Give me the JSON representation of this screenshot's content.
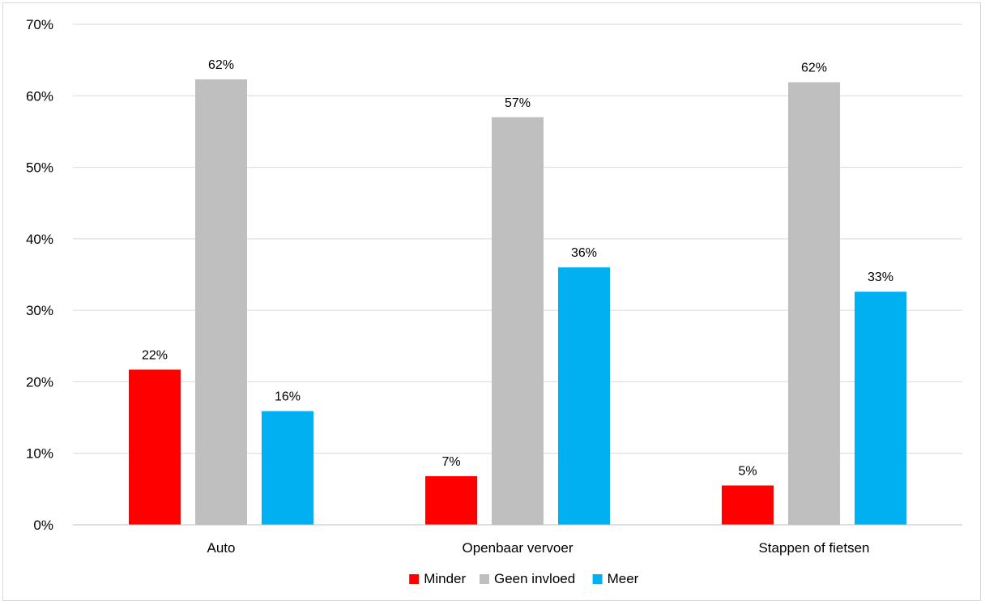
{
  "chart_data": {
    "type": "bar",
    "categories": [
      "Auto",
      "Openbaar vervoer",
      "Stappen of fietsen"
    ],
    "series": [
      {
        "name": "Minder",
        "color": "#ff0000",
        "values": [
          0.217,
          0.068,
          0.055
        ],
        "labels": [
          "22%",
          "7%",
          "5%"
        ]
      },
      {
        "name": "Geen invloed",
        "color": "#bfbfbf",
        "values": [
          0.623,
          0.57,
          0.619
        ],
        "labels": [
          "62%",
          "57%",
          "62%"
        ]
      },
      {
        "name": "Meer",
        "color": "#00b0f0",
        "values": [
          0.159,
          0.36,
          0.326
        ],
        "labels": [
          "16%",
          "36%",
          "33%"
        ]
      }
    ],
    "yticks": [
      "0%",
      "10%",
      "20%",
      "30%",
      "40%",
      "50%",
      "60%",
      "70%"
    ],
    "ylim": [
      0,
      0.7
    ],
    "grid": true,
    "legend_position": "bottom",
    "title": "",
    "xlabel": "",
    "ylabel": ""
  }
}
